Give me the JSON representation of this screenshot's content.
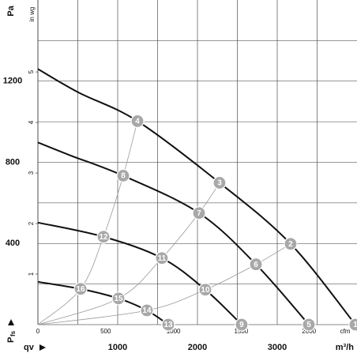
{
  "chart_data": {
    "type": "line",
    "y_label": "Pa",
    "y2_label": "in wg",
    "y_symbol": "P",
    "y_symbol_subscript": "fs",
    "x_label": "qv",
    "x_unit": "m³/h",
    "x2_label": "cfm",
    "xlim": [
      0,
      4000
    ],
    "xticks": [
      1000,
      2000,
      3000
    ],
    "xgrid": [
      500,
      1000,
      1500,
      2000,
      2500,
      3000,
      3500
    ],
    "ylim": [
      0,
      1600
    ],
    "yticks": [
      400,
      800,
      1200
    ],
    "ygrid": [
      200,
      400,
      600,
      800,
      1000,
      1200,
      1400
    ],
    "x2lim": [
      0,
      2354.3
    ],
    "x2ticks": [
      0,
      500,
      1000,
      1500,
      2000
    ],
    "y2lim": [
      0,
      6.4234
    ],
    "y2ticks": [
      1,
      2,
      3,
      4,
      5
    ],
    "curve_color": "#111111",
    "system_color": "#999999",
    "point_color": "#a8a8a8",
    "series": [
      {
        "x": [
          0,
          515,
          1248,
          2277,
          3168,
          3980
        ],
        "values": [
          1260,
          1143,
          1003,
          699,
          398,
          0
        ],
        "point_labels": [
          null,
          null,
          "4",
          "3",
          "2",
          "1"
        ]
      },
      {
        "x": [
          0,
          400,
          1069,
          2020,
          2733,
          3396
        ],
        "values": [
          898,
          835,
          734,
          550,
          297,
          0
        ],
        "point_labels": [
          null,
          null,
          "8",
          "7",
          "6",
          "5"
        ]
      },
      {
        "x": [
          0,
          822,
          1554,
          2099,
          2554
        ],
        "values": [
          503,
          433,
          328,
          172,
          0
        ],
        "point_labels": [
          null,
          "12",
          "11",
          "10",
          "9"
        ]
      },
      {
        "x": [
          0,
          535,
          1010,
          1366,
          1634
        ],
        "values": [
          211,
          176,
          129,
          70,
          0
        ],
        "point_labels": [
          null,
          "16",
          "15",
          "14",
          "13"
        ]
      }
    ]
  }
}
